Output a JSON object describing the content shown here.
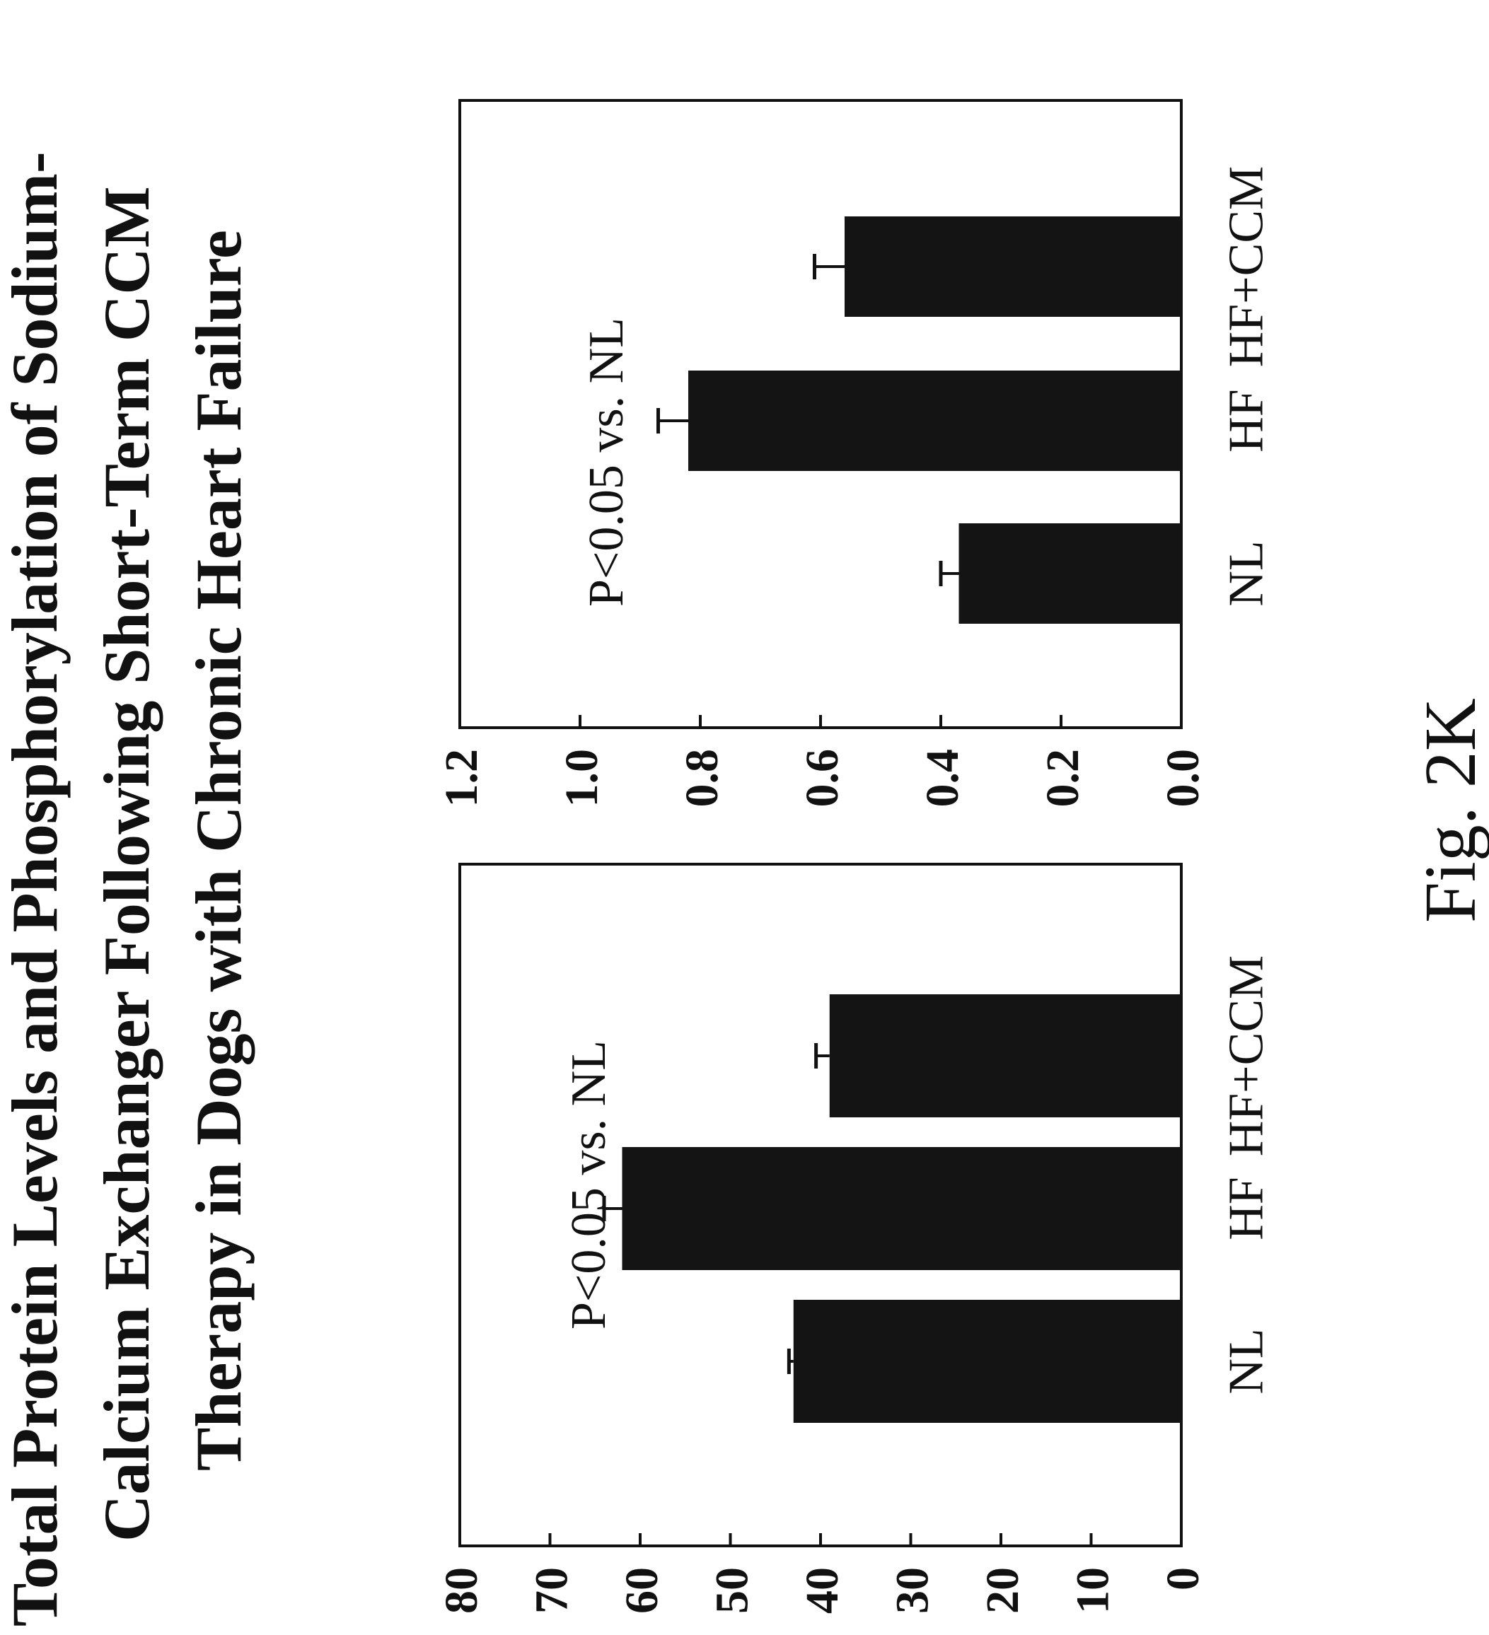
{
  "title": {
    "lines": [
      "Total Protein Levels and Phosphorylation of Sodium-",
      "Calcium Exchanger Following Short-Term CCM",
      "Therapy in Dogs with Chronic Heart Failure"
    ]
  },
  "figure_label": "Fig. 2K",
  "chart_data": [
    {
      "type": "bar",
      "categories": [
        "NL",
        "HF",
        "HF+CCM"
      ],
      "values": [
        43,
        62,
        39
      ],
      "error": [
        0.5,
        2,
        1.5
      ],
      "ylim": [
        0,
        80
      ],
      "yticks": [
        "0",
        "10",
        "20",
        "30",
        "40",
        "50",
        "60",
        "70",
        "80"
      ],
      "annotation": "P<0.05 vs. NL",
      "bar_color": "#141414"
    },
    {
      "type": "bar",
      "categories": [
        "NL",
        "HF",
        "HF+CCM"
      ],
      "values": [
        0.37,
        0.82,
        0.56
      ],
      "error": [
        0.03,
        0.05,
        0.05
      ],
      "ylim": [
        0,
        1.2
      ],
      "yticks": [
        "0.0",
        "0.2",
        "0.4",
        "0.6",
        "0.8",
        "1.0",
        "1.2"
      ],
      "annotation": "P<0.05 vs. NL",
      "bar_color": "#141414"
    }
  ]
}
